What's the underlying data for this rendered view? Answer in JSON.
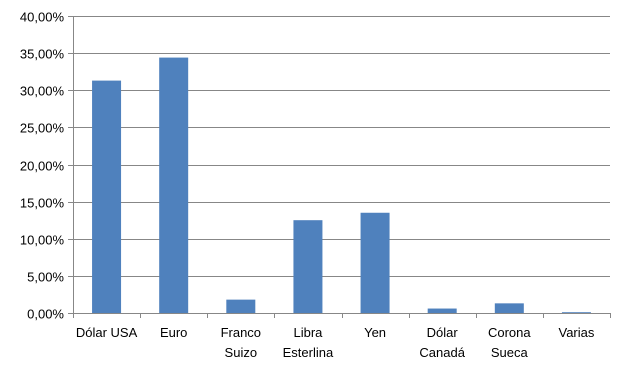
{
  "chart_data": {
    "type": "bar",
    "title": "",
    "xlabel": "",
    "ylabel": "",
    "categories": [
      [
        "Dólar USA"
      ],
      [
        "Euro"
      ],
      [
        "Franco",
        "Suizo"
      ],
      [
        "Libra",
        "Esterlina"
      ],
      [
        "Yen"
      ],
      [
        "Dólar",
        "Canadá"
      ],
      [
        "Corona",
        "Sueca"
      ],
      [
        "Varias"
      ]
    ],
    "values": [
      31.3,
      34.4,
      1.8,
      12.5,
      13.5,
      0.6,
      1.3,
      0.1
    ],
    "ylim": [
      0,
      40
    ],
    "ytick_step": 5,
    "ytick_labels": [
      "0,00%",
      "5,00%",
      "10,00%",
      "15,00%",
      "20,00%",
      "25,00%",
      "30,00%",
      "35,00%",
      "40,00%"
    ],
    "grid": true,
    "legend": "none",
    "colors": {
      "bar": "#4F81BD",
      "grid": "#878787",
      "axis": "#878787"
    }
  }
}
